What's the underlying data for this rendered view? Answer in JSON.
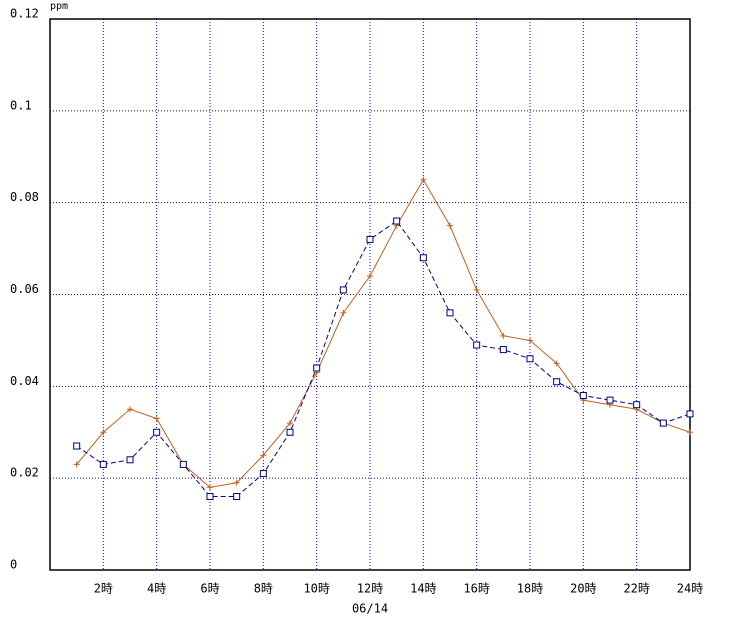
{
  "chart_data": {
    "type": "line",
    "y_unit": "ppm",
    "xlabel": "06/14",
    "x": [
      1,
      2,
      3,
      4,
      5,
      6,
      7,
      8,
      9,
      10,
      11,
      12,
      13,
      14,
      15,
      16,
      17,
      18,
      19,
      20,
      21,
      22,
      23,
      24
    ],
    "xlim": [
      0,
      24
    ],
    "xticks": [
      {
        "value": 2,
        "label": "2時"
      },
      {
        "value": 4,
        "label": "4時"
      },
      {
        "value": 6,
        "label": "6時"
      },
      {
        "value": 8,
        "label": "8時"
      },
      {
        "value": 10,
        "label": "10時"
      },
      {
        "value": 12,
        "label": "12時"
      },
      {
        "value": 14,
        "label": "14時"
      },
      {
        "value": 16,
        "label": "16時"
      },
      {
        "value": 18,
        "label": "18時"
      },
      {
        "value": 20,
        "label": "20時"
      },
      {
        "value": 22,
        "label": "22時"
      },
      {
        "value": 24,
        "label": "24時"
      }
    ],
    "ylim": [
      0,
      0.12
    ],
    "yticks": [
      0,
      0.02,
      0.04,
      0.06,
      0.08,
      0.1,
      0.12
    ],
    "grid": true,
    "series": [
      {
        "color": "#c0601a",
        "marker": "plus",
        "dash": false,
        "values": [
          0.023,
          0.03,
          0.035,
          0.033,
          0.023,
          0.018,
          0.019,
          0.025,
          0.032,
          0.043,
          0.056,
          0.064,
          0.075,
          0.085,
          0.075,
          0.061,
          0.051,
          0.05,
          0.045,
          0.037,
          0.036,
          0.035,
          0.032,
          0.03
        ]
      },
      {
        "color": "#000080",
        "marker": "square",
        "dash": true,
        "values": [
          0.027,
          0.023,
          0.024,
          0.03,
          0.023,
          0.016,
          0.016,
          0.021,
          0.03,
          0.044,
          0.061,
          0.072,
          0.076,
          0.068,
          0.056,
          0.049,
          0.048,
          0.046,
          0.041,
          0.038,
          0.037,
          0.036,
          0.032,
          0.034
        ]
      }
    ]
  }
}
